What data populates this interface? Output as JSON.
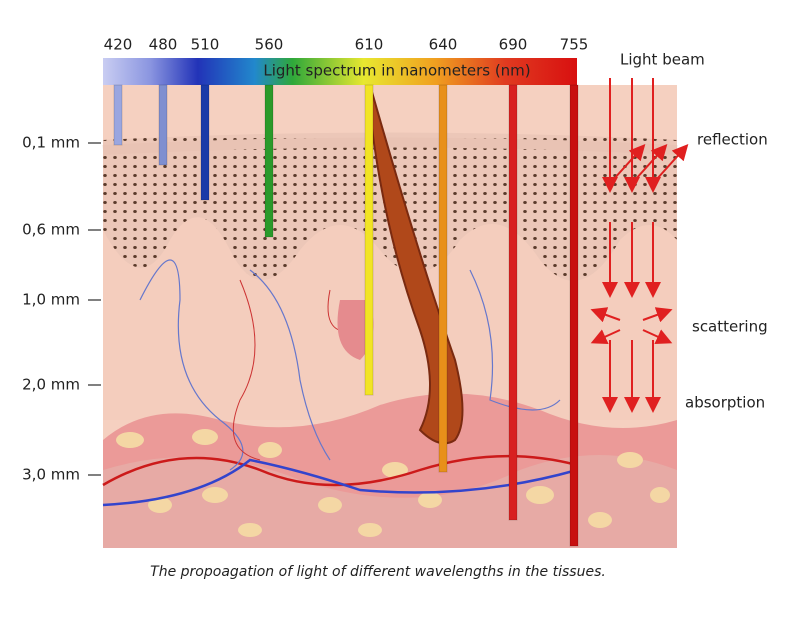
{
  "spectrum": {
    "title": "Light spectrum in nanometers (nm)",
    "wavelengths": [
      "420",
      "480",
      "510",
      "560",
      "610",
      "640",
      "690",
      "755"
    ]
  },
  "depth_labels": [
    "0,1 mm",
    "0,6 mm",
    "1,0 mm",
    "2,0 mm",
    "3,0 mm"
  ],
  "light_labels": {
    "beam": "Light beam",
    "reflection": "reflection",
    "scattering": "scattering",
    "absorption": "absorption"
  },
  "caption": "The propoagation of light of different wavelengths in the tissues."
}
